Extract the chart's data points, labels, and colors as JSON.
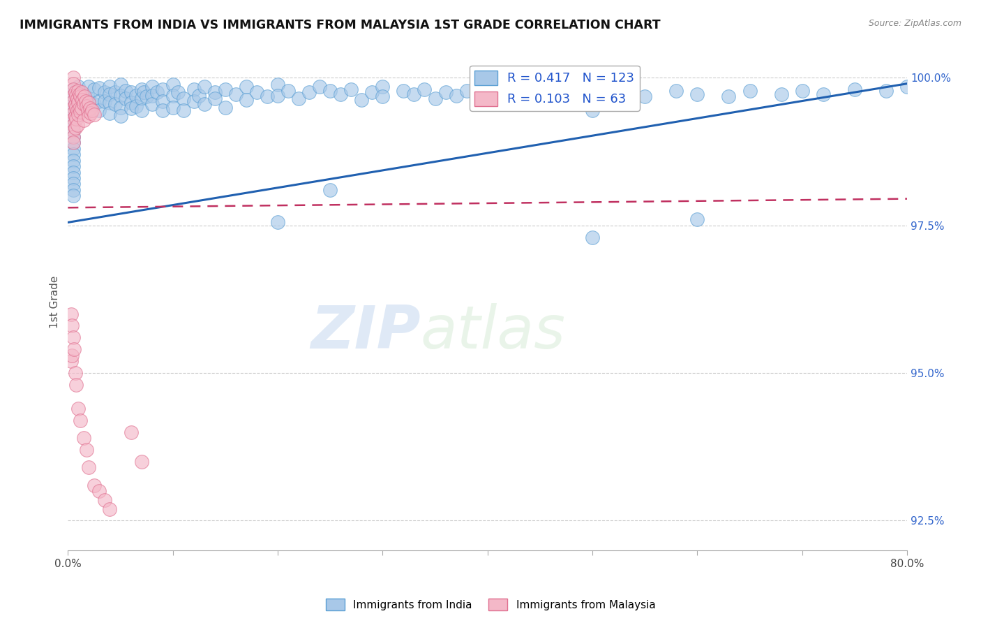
{
  "title": "IMMIGRANTS FROM INDIA VS IMMIGRANTS FROM MALAYSIA 1ST GRADE CORRELATION CHART",
  "source": "Source: ZipAtlas.com",
  "ylabel": "1st Grade",
  "xlim": [
    0.0,
    0.8
  ],
  "ylim": [
    0.92,
    1.004
  ],
  "yticks": [
    0.925,
    0.95,
    0.975,
    1.0
  ],
  "yticklabels": [
    "92.5%",
    "95.0%",
    "97.5%",
    "100.0%"
  ],
  "R_india": 0.417,
  "N_india": 123,
  "R_malaysia": 0.103,
  "N_malaysia": 63,
  "india_color": "#a8c8e8",
  "india_edge": "#5a9fd4",
  "malaysia_color": "#f4b8c8",
  "malaysia_edge": "#e07090",
  "india_trend_color": "#2060b0",
  "malaysia_trend_color": "#c03060",
  "watermark_zip": "ZIP",
  "watermark_atlas": "atlas",
  "india_x": [
    0.01,
    0.01,
    0.015,
    0.02,
    0.02,
    0.025,
    0.025,
    0.03,
    0.03,
    0.03,
    0.035,
    0.035,
    0.04,
    0.04,
    0.04,
    0.04,
    0.045,
    0.045,
    0.05,
    0.05,
    0.05,
    0.05,
    0.055,
    0.055,
    0.06,
    0.06,
    0.06,
    0.065,
    0.065,
    0.07,
    0.07,
    0.07,
    0.072,
    0.075,
    0.08,
    0.08,
    0.08,
    0.085,
    0.09,
    0.09,
    0.09,
    0.1,
    0.1,
    0.1,
    0.105,
    0.11,
    0.11,
    0.12,
    0.12,
    0.125,
    0.13,
    0.13,
    0.14,
    0.14,
    0.15,
    0.15,
    0.16,
    0.17,
    0.17,
    0.18,
    0.19,
    0.2,
    0.2,
    0.21,
    0.22,
    0.23,
    0.24,
    0.25,
    0.26,
    0.27,
    0.28,
    0.29,
    0.3,
    0.3,
    0.32,
    0.33,
    0.34,
    0.35,
    0.36,
    0.37,
    0.38,
    0.4,
    0.4,
    0.42,
    0.44,
    0.45,
    0.46,
    0.48,
    0.5,
    0.5,
    0.52,
    0.55,
    0.58,
    0.6,
    0.63,
    0.65,
    0.68,
    0.7,
    0.72,
    0.75,
    0.78,
    0.8,
    0.2,
    0.25,
    0.5,
    0.6,
    0.005,
    0.005,
    0.005,
    0.005,
    0.005,
    0.005,
    0.005,
    0.005,
    0.005,
    0.005,
    0.005,
    0.005,
    0.005,
    0.005,
    0.005,
    0.005,
    0.005,
    0.005,
    0.005
  ],
  "india_y": [
    0.9985,
    0.9968,
    0.9972,
    0.9985,
    0.9965,
    0.998,
    0.9955,
    0.9982,
    0.996,
    0.9945,
    0.9975,
    0.996,
    0.9985,
    0.9972,
    0.9958,
    0.994,
    0.9975,
    0.9955,
    0.9988,
    0.997,
    0.995,
    0.9935,
    0.9978,
    0.9965,
    0.9975,
    0.9958,
    0.9948,
    0.997,
    0.9952,
    0.998,
    0.9965,
    0.9945,
    0.9975,
    0.9968,
    0.9985,
    0.997,
    0.9955,
    0.9975,
    0.998,
    0.996,
    0.9945,
    0.9988,
    0.997,
    0.995,
    0.9975,
    0.9965,
    0.9945,
    0.998,
    0.996,
    0.997,
    0.9985,
    0.9955,
    0.9975,
    0.9965,
    0.998,
    0.995,
    0.9972,
    0.9985,
    0.9962,
    0.9975,
    0.9968,
    0.9988,
    0.997,
    0.9978,
    0.9965,
    0.9975,
    0.9985,
    0.9978,
    0.9972,
    0.998,
    0.9962,
    0.9975,
    0.9985,
    0.9968,
    0.9978,
    0.9972,
    0.998,
    0.9965,
    0.9975,
    0.997,
    0.9978,
    0.9985,
    0.9972,
    0.9978,
    0.998,
    0.9968,
    0.9975,
    0.9972,
    0.996,
    0.9945,
    0.9975,
    0.9968,
    0.9978,
    0.9972,
    0.9968,
    0.9978,
    0.9972,
    0.9978,
    0.9972,
    0.998,
    0.9978,
    0.9985,
    0.9755,
    0.981,
    0.973,
    0.976,
    0.998,
    0.997,
    0.996,
    0.995,
    0.994,
    0.993,
    0.992,
    0.991,
    0.99,
    0.989,
    0.988,
    0.987,
    0.986,
    0.985,
    0.984,
    0.983,
    0.982,
    0.981,
    0.98
  ],
  "malaysia_x": [
    0.005,
    0.005,
    0.005,
    0.005,
    0.005,
    0.005,
    0.005,
    0.005,
    0.005,
    0.005,
    0.005,
    0.005,
    0.007,
    0.007,
    0.007,
    0.007,
    0.008,
    0.008,
    0.008,
    0.009,
    0.009,
    0.009,
    0.01,
    0.01,
    0.01,
    0.011,
    0.011,
    0.012,
    0.012,
    0.013,
    0.013,
    0.014,
    0.015,
    0.015,
    0.016,
    0.017,
    0.018,
    0.019,
    0.02,
    0.02,
    0.021,
    0.022,
    0.023,
    0.025,
    0.003,
    0.003,
    0.004,
    0.004,
    0.005,
    0.006,
    0.007,
    0.008,
    0.01,
    0.012,
    0.015,
    0.018,
    0.02,
    0.025,
    0.03,
    0.035,
    0.04,
    0.06,
    0.07
  ],
  "malaysia_y": [
    1.0,
    0.999,
    0.998,
    0.997,
    0.996,
    0.995,
    0.994,
    0.993,
    0.992,
    0.991,
    0.99,
    0.989,
    0.9975,
    0.9955,
    0.9935,
    0.9915,
    0.997,
    0.995,
    0.993,
    0.9965,
    0.9945,
    0.992,
    0.9978,
    0.9958,
    0.9938,
    0.9972,
    0.9948,
    0.9968,
    0.9942,
    0.9975,
    0.9948,
    0.9962,
    0.9955,
    0.9928,
    0.9968,
    0.996,
    0.9952,
    0.9944,
    0.9935,
    0.9958,
    0.9948,
    0.994,
    0.9945,
    0.9938,
    0.96,
    0.952,
    0.958,
    0.953,
    0.956,
    0.954,
    0.95,
    0.948,
    0.944,
    0.942,
    0.939,
    0.937,
    0.934,
    0.931,
    0.93,
    0.9285,
    0.927,
    0.94,
    0.935
  ]
}
